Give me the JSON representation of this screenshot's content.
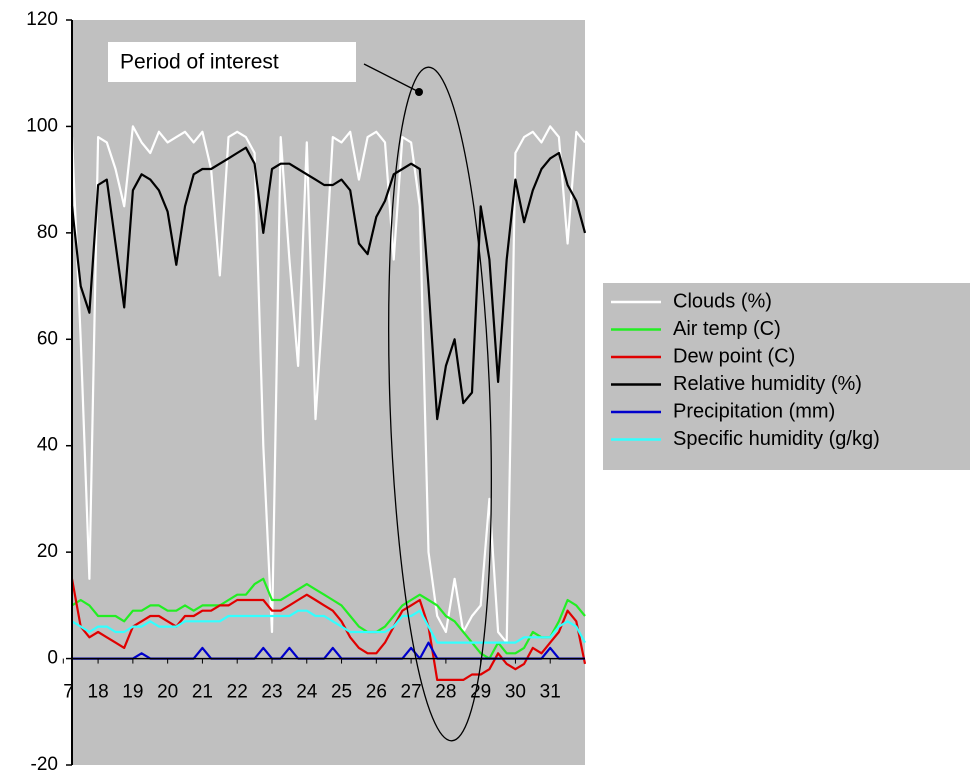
{
  "chart_data": {
    "type": "line",
    "annotation": "Period of interest",
    "legend": "right",
    "x": [
      17.25,
      17.5,
      17.75,
      18,
      18.25,
      18.5,
      18.75,
      19,
      19.25,
      19.5,
      19.75,
      20,
      20.25,
      20.5,
      20.75,
      21,
      21.25,
      21.5,
      21.75,
      22,
      22.25,
      22.5,
      22.75,
      23,
      23.25,
      23.5,
      23.75,
      24,
      24.25,
      24.5,
      24.75,
      25,
      25.25,
      25.5,
      25.75,
      26,
      26.25,
      26.5,
      26.75,
      27,
      27.25,
      27.5,
      27.75,
      28,
      28.25,
      28.5,
      28.75,
      29,
      29.25,
      29.5,
      29.75,
      30,
      30.25,
      30.5,
      30.75,
      31,
      31.25,
      31.5,
      31.75,
      32
    ],
    "xlim": [
      17.25,
      32
    ],
    "xticks": [
      17,
      18,
      19,
      20,
      21,
      22,
      23,
      24,
      25,
      26,
      27,
      28,
      29,
      30,
      31
    ],
    "ylim": [
      -20,
      120
    ],
    "yticks": [
      -20,
      0,
      20,
      40,
      60,
      80,
      100,
      120
    ],
    "series": [
      {
        "name": "Clouds (%)",
        "color": "#ffffff",
        "values": [
          98,
          60,
          15,
          98,
          97,
          92,
          85,
          100,
          97,
          95,
          99,
          97,
          98,
          99,
          97,
          99,
          92,
          72,
          98,
          99,
          98,
          95,
          40,
          5,
          98,
          75,
          55,
          97,
          45,
          70,
          98,
          97,
          99,
          90,
          98,
          99,
          97,
          75,
          98,
          97,
          85,
          20,
          8,
          5,
          15,
          5,
          8,
          10,
          30,
          5,
          3,
          95,
          98,
          99,
          97,
          100,
          98,
          78,
          99,
          97
        ]
      },
      {
        "name": "Air temp (C)",
        "color": "#22ee22",
        "values": [
          10,
          11,
          10,
          8,
          8,
          8,
          7,
          9,
          9,
          10,
          10,
          9,
          9,
          10,
          9,
          10,
          10,
          10,
          11,
          12,
          12,
          14,
          15,
          11,
          11,
          12,
          13,
          14,
          13,
          12,
          11,
          10,
          8,
          6,
          5,
          5,
          6,
          8,
          10,
          11,
          12,
          11,
          10,
          8,
          7,
          5,
          3,
          1,
          0,
          3,
          1,
          1,
          2,
          5,
          4,
          4,
          7,
          11,
          10,
          8
        ]
      },
      {
        "name": "Dew point (C)",
        "color": "#e00000",
        "values": [
          15,
          6,
          4,
          5,
          4,
          3,
          2,
          6,
          7,
          8,
          8,
          7,
          6,
          8,
          8,
          9,
          9,
          10,
          10,
          11,
          11,
          11,
          11,
          9,
          9,
          10,
          11,
          12,
          11,
          10,
          9,
          7,
          4,
          2,
          1,
          1,
          3,
          6,
          9,
          10,
          11,
          6,
          -4,
          -4,
          -4,
          -4,
          -3,
          -3,
          -2,
          1,
          -1,
          -2,
          -1,
          2,
          1,
          3,
          5,
          9,
          7,
          -1
        ]
      },
      {
        "name": "Relative humidity (%)",
        "color": "#000000",
        "values": [
          85,
          70,
          65,
          89,
          90,
          78,
          66,
          88,
          91,
          90,
          88,
          84,
          74,
          85,
          91,
          92,
          92,
          93,
          94,
          95,
          96,
          93,
          80,
          92,
          93,
          93,
          92,
          91,
          90,
          89,
          89,
          90,
          88,
          78,
          76,
          83,
          86,
          91,
          92,
          93,
          92,
          70,
          45,
          55,
          60,
          48,
          50,
          85,
          75,
          52,
          75,
          90,
          82,
          88,
          92,
          94,
          95,
          89,
          86,
          80
        ]
      },
      {
        "name": "Precipitation (mm)",
        "color": "#0000cc",
        "values": [
          0,
          0,
          0,
          0,
          0,
          0,
          0,
          0,
          1,
          0,
          0,
          0,
          0,
          0,
          0,
          2,
          0,
          0,
          0,
          0,
          0,
          0,
          2,
          0,
          0,
          2,
          0,
          0,
          0,
          0,
          2,
          0,
          0,
          0,
          0,
          0,
          0,
          0,
          0,
          2,
          0,
          3,
          0,
          0,
          0,
          0,
          0,
          0,
          0,
          0,
          0,
          0,
          0,
          0,
          0,
          2,
          0,
          0,
          0,
          0
        ]
      },
      {
        "name": "Specific humidity (g/kg)",
        "color": "#33ffff",
        "values": [
          7,
          6,
          5,
          6,
          6,
          5,
          5,
          6,
          6,
          7,
          6,
          6,
          6,
          7,
          7,
          7,
          7,
          7,
          8,
          8,
          8,
          8,
          8,
          8,
          8,
          8,
          9,
          9,
          8,
          8,
          7,
          6,
          5,
          5,
          5,
          5,
          5,
          6,
          8,
          8,
          9,
          6,
          3,
          3,
          3,
          3,
          3,
          3,
          3,
          3,
          3,
          3,
          4,
          4,
          4,
          4,
          6,
          7,
          6,
          3
        ]
      }
    ]
  }
}
